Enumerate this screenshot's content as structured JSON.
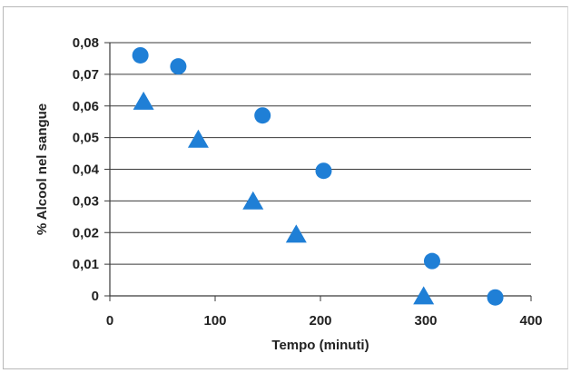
{
  "chart_data": {
    "type": "scatter",
    "xlabel": "Tempo (minuti)",
    "ylabel": "% Alcool nel sangue",
    "xlim": [
      0,
      400
    ],
    "ylim": [
      0,
      0.08
    ],
    "x_ticks": [
      {
        "value": 0,
        "label": "0"
      },
      {
        "value": 100,
        "label": "100"
      },
      {
        "value": 200,
        "label": "200"
      },
      {
        "value": 300,
        "label": "300"
      },
      {
        "value": 400,
        "label": "400"
      }
    ],
    "y_ticks": [
      {
        "value": 0,
        "label": "0"
      },
      {
        "value": 0.01,
        "label": "0,01"
      },
      {
        "value": 0.02,
        "label": "0,02"
      },
      {
        "value": 0.03,
        "label": "0,03"
      },
      {
        "value": 0.04,
        "label": "0,04"
      },
      {
        "value": 0.05,
        "label": "0,05"
      },
      {
        "value": 0.06,
        "label": "0,06"
      },
      {
        "value": 0.07,
        "label": "0,07"
      },
      {
        "value": 0.08,
        "label": "0,08"
      }
    ],
    "grid": "horizontal",
    "legend": "none",
    "series": [
      {
        "marker": "circle",
        "color": "#1f7fd6",
        "points": [
          [
            29,
            0.076
          ],
          [
            65,
            0.0725
          ],
          [
            145,
            0.057
          ],
          [
            203,
            0.0395
          ],
          [
            306,
            0.011
          ],
          [
            366,
            -0.0005
          ]
        ]
      },
      {
        "marker": "triangle",
        "color": "#1f7fd6",
        "points": [
          [
            32,
            0.061
          ],
          [
            84,
            0.049
          ],
          [
            136,
            0.0295
          ],
          [
            177,
            0.019
          ],
          [
            298,
            -0.0005
          ]
        ]
      }
    ]
  }
}
